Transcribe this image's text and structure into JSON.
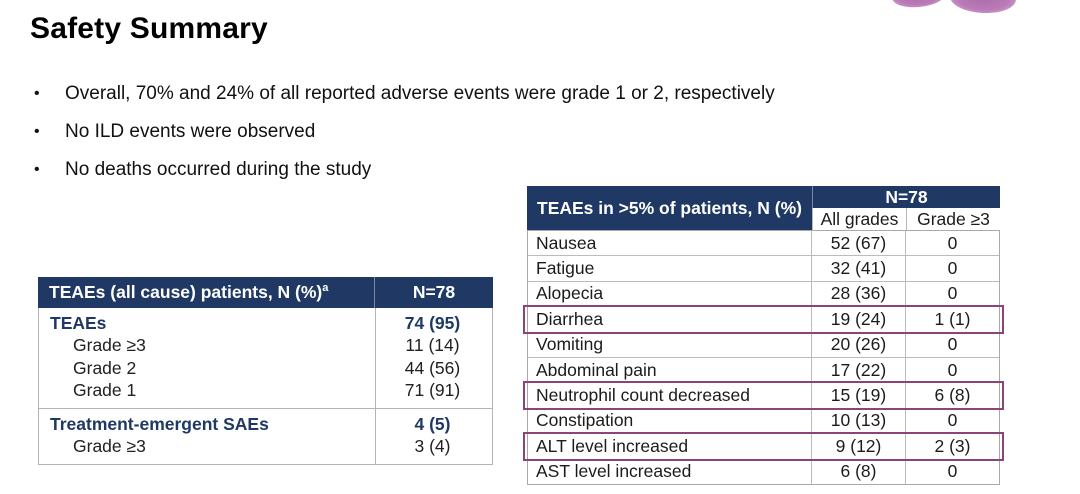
{
  "slide": {
    "title": "Safety Summary",
    "bullets": [
      "Overall, 70% and 24% of all reported adverse events were grade 1 or 2, respectively",
      "No ILD events were observed",
      "No deaths occurred during the study"
    ]
  },
  "left_table": {
    "header": {
      "label": "TEAEs (all cause) patients, N (%)",
      "superscript": "a",
      "value_col": "N=78"
    },
    "sections": [
      {
        "rows": [
          {
            "label": "TEAEs",
            "value": "74 (95)"
          },
          {
            "label": "Grade ≥3",
            "value": "11 (14)"
          },
          {
            "label": "Grade 2",
            "value": "44 (56)"
          },
          {
            "label": "Grade 1",
            "value": "71 (91)"
          }
        ]
      },
      {
        "rows": [
          {
            "label": "Treatment-emergent SAEs",
            "value": "4 (5)"
          },
          {
            "label": "Grade ≥3",
            "value": "3 (4)"
          }
        ]
      }
    ]
  },
  "right_table": {
    "header": {
      "label": "TEAEs in >5% of patients, N (%)",
      "group_label": "N=78",
      "sub_cols": [
        "All grades",
        "Grade ≥3"
      ]
    },
    "rows": [
      {
        "label": "Nausea",
        "all_grades": "52 (67)",
        "grade_ge3": "0",
        "highlighted": false
      },
      {
        "label": "Fatigue",
        "all_grades": "32 (41)",
        "grade_ge3": "0",
        "highlighted": false
      },
      {
        "label": "Alopecia",
        "all_grades": "28 (36)",
        "grade_ge3": "0",
        "highlighted": false
      },
      {
        "label": "Diarrhea",
        "all_grades": "19 (24)",
        "grade_ge3": "1 (1)",
        "highlighted": true
      },
      {
        "label": "Vomiting",
        "all_grades": "20 (26)",
        "grade_ge3": "0",
        "highlighted": false
      },
      {
        "label": "Abdominal pain",
        "all_grades": "17 (22)",
        "grade_ge3": "0",
        "highlighted": false
      },
      {
        "label": "Neutrophil count decreased",
        "all_grades": "15 (19)",
        "grade_ge3": "6 (8)",
        "highlighted": true
      },
      {
        "label": "Constipation",
        "all_grades": "10 (13)",
        "grade_ge3": "0",
        "highlighted": false
      },
      {
        "label": "ALT level increased",
        "all_grades": "9 (12)",
        "grade_ge3": "2 (3)",
        "highlighted": true
      },
      {
        "label": "AST level increased",
        "all_grades": "6 (8)",
        "grade_ge3": "0",
        "highlighted": false
      }
    ]
  },
  "colors": {
    "header_navy": "#1F3864",
    "highlight_purple": "#8C4377",
    "logo_purple": "#B97AB6",
    "grid_gray": "#B3B3B3"
  }
}
